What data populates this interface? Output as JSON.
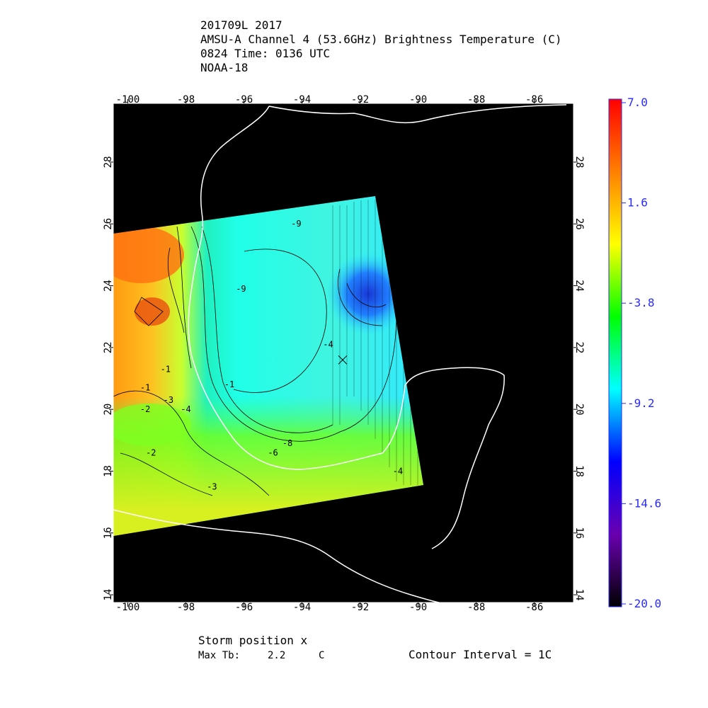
{
  "chart_data": {
    "type": "map",
    "title_lines": [
      "201709L 2017",
      "AMSU-A Channel 4 (53.6GHz) Brightness Temperature (C)",
      "0824 Time: 0136 UTC",
      "NOAA-18"
    ],
    "xlim": [
      -100.5,
      -84.65
    ],
    "ylim": [
      13.75,
      29.9
    ],
    "xticks": [
      -100,
      -98,
      -96,
      -94,
      -92,
      -90,
      -88,
      -86
    ],
    "yticks": [
      14,
      16,
      18,
      20,
      22,
      24,
      26,
      28
    ],
    "colorbar": {
      "lim": [
        -20,
        7
      ],
      "ticks": [
        {
          "value": 7,
          "label": "7.0"
        },
        1.6,
        -3.8,
        -9.2,
        -14.6,
        {
          "value": -20,
          "label": "-20.0"
        }
      ],
      "colormap": [
        "#000000",
        "#6a00b0",
        "#0000ff",
        "#00ffff",
        "#00ff00",
        "#ffff00",
        "#ff8000",
        "#ff0000"
      ]
    },
    "contour_labels": [
      {
        "text": "-9",
        "lon": -94.2,
        "lat": 26.0
      },
      {
        "text": "-9",
        "lon": -96.1,
        "lat": 23.9
      },
      {
        "text": "-4",
        "lon": -93.1,
        "lat": 22.1
      },
      {
        "text": "-1",
        "lon": -98.7,
        "lat": 21.3
      },
      {
        "text": "-1",
        "lon": -99.4,
        "lat": 20.7
      },
      {
        "text": "-2",
        "lon": -99.4,
        "lat": 20.0
      },
      {
        "text": "-3",
        "lon": -98.6,
        "lat": 20.3
      },
      {
        "text": "-4",
        "lon": -98.0,
        "lat": 20.0
      },
      {
        "text": "-2",
        "lon": -99.2,
        "lat": 18.6
      },
      {
        "text": "-3",
        "lon": -97.1,
        "lat": 17.5
      },
      {
        "text": "-1",
        "lon": -96.5,
        "lat": 20.8
      },
      {
        "text": "-8",
        "lon": -94.5,
        "lat": 18.9
      },
      {
        "text": "-6",
        "lon": -95.0,
        "lat": 18.6
      },
      {
        "text": "-4",
        "lon": -90.7,
        "lat": 18.0
      }
    ],
    "storm_position": {
      "lon": -92.6,
      "lat": 21.6
    },
    "footer": {
      "storm_label": "Storm position x",
      "max_tb_label": "Max Tb:",
      "max_tb": 2.2,
      "max_tb_unit": "C",
      "contour_interval": "Contour Interval = 1C"
    }
  }
}
